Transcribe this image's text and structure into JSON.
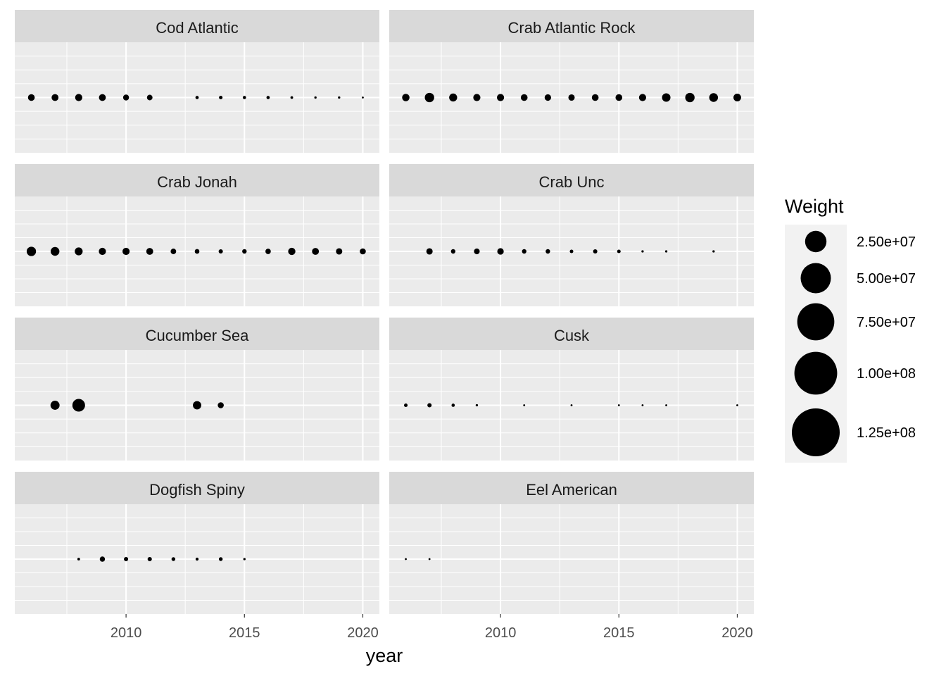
{
  "chart_data": {
    "type": "scatter",
    "xlabel": "year",
    "x_ticks": [
      2010,
      2015,
      2020
    ],
    "xlim": [
      2005.3,
      2020.7
    ],
    "grid": true,
    "legend": {
      "title": "Weight",
      "position": "right",
      "labels": [
        "2.50e+07",
        "5.00e+07",
        "7.50e+07",
        "1.00e+08",
        "1.25e+08"
      ],
      "values": [
        25000000,
        50000000,
        75000000,
        100000000,
        125000000
      ]
    },
    "panels": [
      {
        "name": "Cod Atlantic",
        "x": [
          2006,
          2007,
          2008,
          2009,
          2010,
          2011,
          2013,
          2014,
          2015,
          2016,
          2017,
          2018,
          2019,
          2020
        ],
        "weight": [
          2500000,
          2600000,
          2800000,
          2600000,
          1900000,
          1700000,
          600000,
          700000,
          600000,
          600000,
          400000,
          300000,
          300000,
          200000
        ]
      },
      {
        "name": "Crab Atlantic Rock",
        "x": [
          2006,
          2007,
          2008,
          2009,
          2010,
          2011,
          2012,
          2013,
          2014,
          2015,
          2016,
          2017,
          2018,
          2019,
          2020
        ],
        "weight": [
          3000000,
          4800000,
          3500000,
          2800000,
          2800000,
          2500000,
          2300000,
          2200000,
          2500000,
          2500000,
          2800000,
          3900000,
          4800000,
          4200000,
          3200000
        ]
      },
      {
        "name": "Crab Jonah",
        "x": [
          2006,
          2007,
          2008,
          2009,
          2010,
          2011,
          2012,
          2013,
          2014,
          2015,
          2016,
          2017,
          2018,
          2019,
          2020
        ],
        "weight": [
          4800000,
          4200000,
          3400000,
          2800000,
          2800000,
          2600000,
          1700000,
          1200000,
          1000000,
          1100000,
          1600000,
          2900000,
          2600000,
          2200000,
          2000000
        ]
      },
      {
        "name": "Crab Unc",
        "x": [
          2007,
          2008,
          2009,
          2010,
          2011,
          2012,
          2013,
          2014,
          2015,
          2016,
          2017,
          2019
        ],
        "weight": [
          2200000,
          1100000,
          1800000,
          2300000,
          1100000,
          1100000,
          700000,
          1000000,
          700000,
          300000,
          300000,
          300000
        ]
      },
      {
        "name": "Cucumber Sea",
        "x": [
          2007,
          2008,
          2013,
          2014
        ],
        "weight": [
          4500000,
          8800000,
          3800000,
          2000000
        ]
      },
      {
        "name": "Cusk",
        "x": [
          2006,
          2007,
          2008,
          2009,
          2011,
          2013,
          2015,
          2016,
          2017,
          2020
        ],
        "weight": [
          700000,
          1000000,
          600000,
          300000,
          200000,
          200000,
          200000,
          200000,
          200000,
          200000
        ]
      },
      {
        "name": "Dogfish Spiny",
        "x": [
          2008,
          2009,
          2010,
          2011,
          2012,
          2013,
          2014,
          2015
        ],
        "weight": [
          400000,
          1500000,
          1000000,
          1000000,
          800000,
          500000,
          800000,
          300000
        ]
      },
      {
        "name": "Eel American",
        "x": [
          2006,
          2007
        ],
        "weight": [
          100000,
          100000
        ]
      }
    ]
  }
}
